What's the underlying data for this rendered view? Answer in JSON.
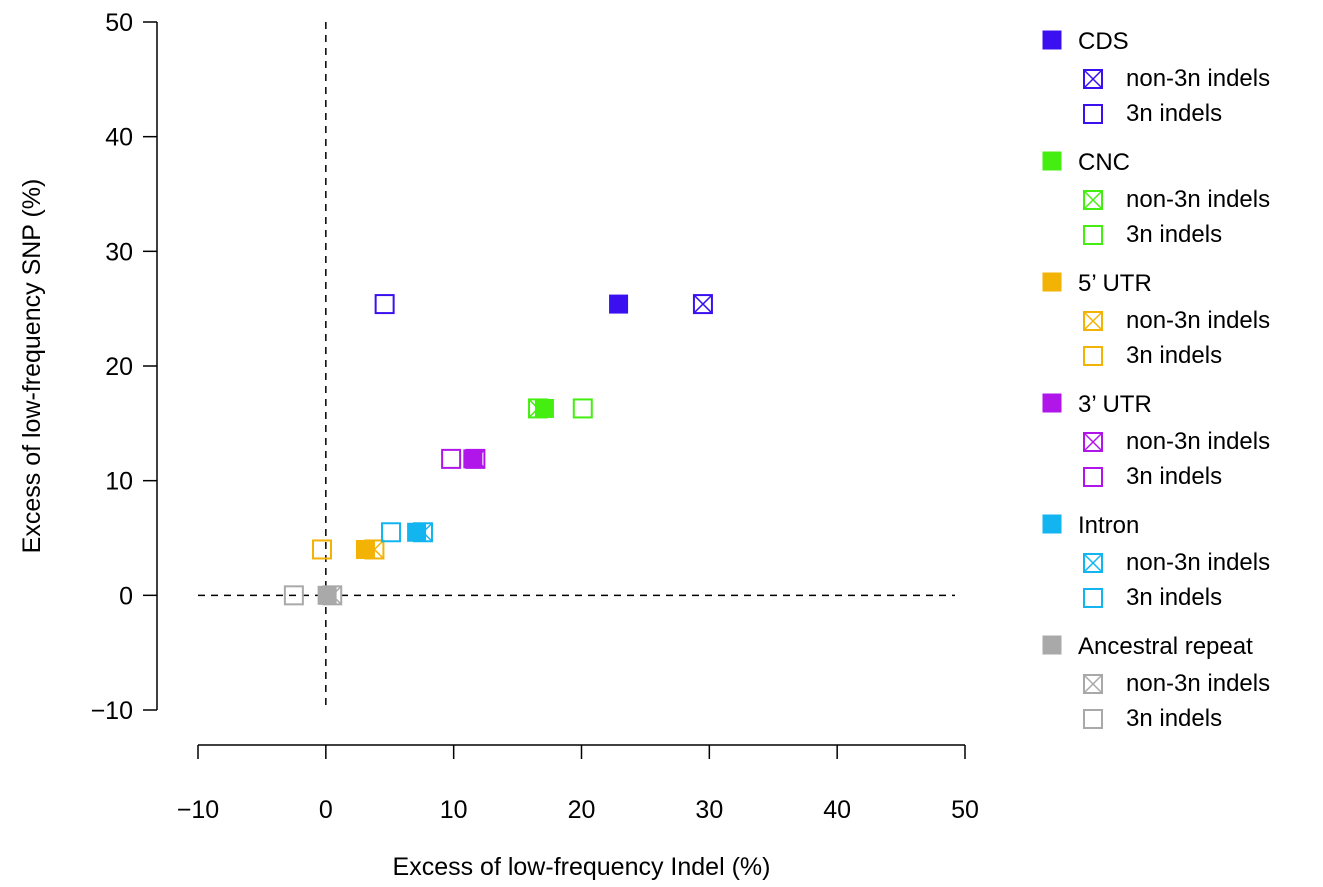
{
  "chart_data": {
    "type": "scatter",
    "title": "",
    "xlabel": "Excess of low-frequency Indel (%)",
    "ylabel": "Excess of low-frequency SNP (%)",
    "xlim": [
      -10,
      50
    ],
    "ylim": [
      -10,
      50
    ],
    "xticks": [
      -10,
      0,
      10,
      20,
      30,
      40,
      50
    ],
    "yticks": [
      -10,
      0,
      10,
      20,
      30,
      40,
      50
    ],
    "xtick_labels": [
      "−10",
      "0",
      "10",
      "20",
      "30",
      "40",
      "50"
    ],
    "ytick_labels": [
      "−10",
      "0",
      "10",
      "20",
      "30",
      "40",
      "50"
    ],
    "reference_lines": {
      "x": 0,
      "y": 0,
      "style": "dashed"
    },
    "grid": false,
    "legend_position": "right",
    "marker_types": {
      "all": "filled-square",
      "non3n": "crossed-square",
      "threen": "open-square"
    },
    "series": [
      {
        "name": "CDS",
        "color": "#3b10f0",
        "all": {
          "x": 22.9,
          "y": 25.4
        },
        "non3n": {
          "x": 29.5,
          "y": 25.4
        },
        "threen": {
          "x": 4.6,
          "y": 25.4
        }
      },
      {
        "name": "CNC",
        "color": "#44ee11",
        "all": {
          "x": 17.1,
          "y": 16.3
        },
        "non3n": {
          "x": 16.6,
          "y": 16.3
        },
        "threen": {
          "x": 20.1,
          "y": 16.3
        }
      },
      {
        "name": "5’ UTR",
        "color": "#f2b305",
        "all": {
          "x": 3.1,
          "y": 4.0
        },
        "non3n": {
          "x": 3.8,
          "y": 4.0
        },
        "threen": {
          "x": -0.3,
          "y": 4.0
        }
      },
      {
        "name": "3’ UTR",
        "color": "#b016ea",
        "all": {
          "x": 11.5,
          "y": 11.9
        },
        "non3n": {
          "x": 11.7,
          "y": 11.9
        },
        "threen": {
          "x": 9.8,
          "y": 11.9
        }
      },
      {
        "name": "Intron",
        "color": "#12b5ef",
        "all": {
          "x": 7.1,
          "y": 5.5
        },
        "non3n": {
          "x": 7.6,
          "y": 5.5
        },
        "threen": {
          "x": 5.1,
          "y": 5.5
        }
      },
      {
        "name": "Ancestral repeat",
        "color": "#a9a9a9",
        "all": {
          "x": 0.1,
          "y": 0.0
        },
        "non3n": {
          "x": 0.5,
          "y": 0.0
        },
        "threen": {
          "x": -2.5,
          "y": 0.0
        }
      }
    ],
    "legend_sub_labels": {
      "non3n": "non-3n indels",
      "threen": "3n indels"
    }
  }
}
